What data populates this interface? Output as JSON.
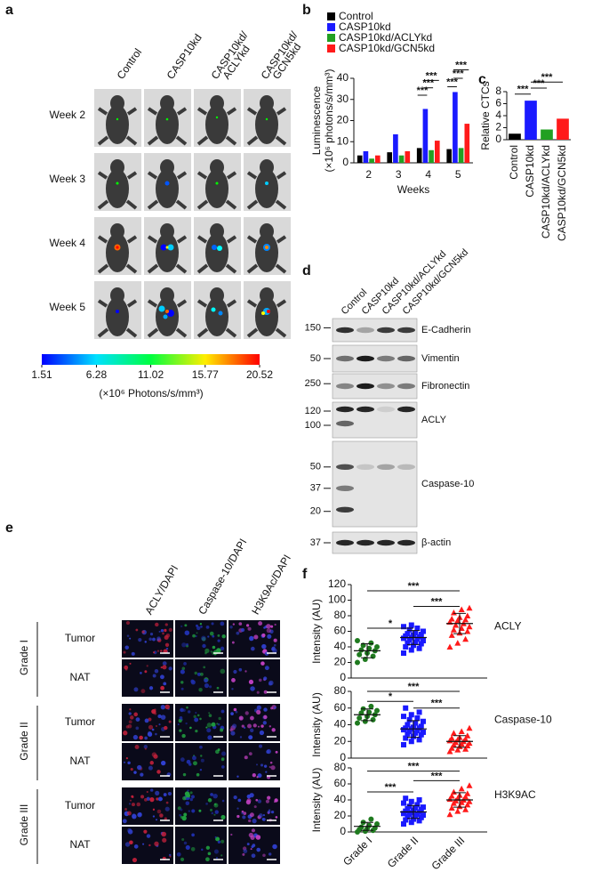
{
  "panel_labels": [
    "a",
    "b",
    "c",
    "d",
    "e",
    "f"
  ],
  "imaging": {
    "columns": [
      [
        "Control"
      ],
      [
        "CASP10kd"
      ],
      [
        "CASP10kd/",
        "ACLYkd"
      ],
      [
        "CASP10kd/",
        "GCN5kd"
      ]
    ],
    "rows": [
      "Week 2",
      "Week 3",
      "Week 4",
      "Week 5"
    ],
    "clim": [
      1.51,
      20.52
    ],
    "colorbar_ticks": [
      1.51,
      6.28,
      11.02,
      15.77,
      20.52
    ],
    "colorbar_label": "(×10⁶ Photons/s/mm³)"
  },
  "chart_data": [
    {
      "type": "bar",
      "categories": [
        "2",
        "3",
        "4",
        "5"
      ],
      "series": [
        {
          "name": "Control",
          "color": "#000000",
          "values": [
            3.5,
            5,
            7,
            6.5
          ]
        },
        {
          "name": "CASP10kd",
          "color": "#1a1aff",
          "values": [
            5.5,
            13.5,
            25.5,
            33.5
          ]
        },
        {
          "name": "CASP10kd/ACLYkd",
          "color": "#22a022",
          "values": [
            2,
            3.5,
            6,
            7
          ]
        },
        {
          "name": "CASP10kd/GCN5kd",
          "color": "#ff1a1a",
          "values": [
            3.5,
            5.5,
            10.5,
            18.5
          ]
        }
      ],
      "ylabel": [
        "Luminescence",
        "(×10⁶ photons/s/mm³)"
      ],
      "xlabel": "Weeks",
      "ylim": [
        0,
        40
      ],
      "yticks": [
        0,
        10,
        20,
        30,
        40
      ],
      "annotations": [
        "***",
        "***",
        "***",
        "***",
        "***",
        "***"
      ]
    },
    {
      "type": "bar",
      "categories": [
        "Control",
        "CASP10kd",
        "CASP10kd/ACLYkd",
        "CASP10kd/GCN5kd"
      ],
      "values": [
        1,
        6.5,
        1.7,
        3.5
      ],
      "colors": [
        "#000000",
        "#1a1aff",
        "#22a022",
        "#ff1a1a"
      ],
      "ylabel": [
        "Relative CTCs"
      ],
      "ylim": [
        0,
        8
      ],
      "yticks": [
        0,
        2,
        4,
        6,
        8
      ],
      "annotations": [
        "***",
        "***",
        "***"
      ]
    },
    {
      "type": "strip",
      "title": "ACLY",
      "ylabel": "Intensity (AU)",
      "ylim": [
        0,
        120
      ],
      "yticks": [
        0,
        20,
        40,
        60,
        80,
        100,
        120
      ],
      "series": [
        {
          "color": "#1f7a1f",
          "marker": "circle",
          "mean": 35,
          "sd": 9,
          "values": [
            20,
            24,
            28,
            30,
            32,
            35,
            36,
            38,
            40,
            42,
            45,
            48
          ]
        },
        {
          "color": "#1a1aff",
          "marker": "square",
          "mean": 52,
          "sd": 9,
          "values": [
            32,
            36,
            38,
            40,
            42,
            44,
            45,
            46,
            48,
            49,
            50,
            51,
            52,
            53,
            54,
            55,
            56,
            57,
            58,
            60,
            62,
            64,
            66,
            68
          ]
        },
        {
          "color": "#ff1a1a",
          "marker": "triangle",
          "mean": 70,
          "sd": 13,
          "values": [
            40,
            45,
            50,
            55,
            58,
            60,
            62,
            64,
            66,
            68,
            70,
            72,
            74,
            75,
            76,
            78,
            80,
            84,
            88,
            90
          ]
        }
      ],
      "annotations": [
        "*",
        "***",
        "***"
      ]
    },
    {
      "type": "strip",
      "title": "Caspase-10",
      "ylabel": "Intensity (AU)",
      "ylim": [
        0,
        80
      ],
      "yticks": [
        0,
        20,
        40,
        60,
        80
      ],
      "series": [
        {
          "color": "#1f7a1f",
          "marker": "circle",
          "mean": 52,
          "sd": 7,
          "values": [
            42,
            44,
            46,
            48,
            50,
            52,
            54,
            55,
            57,
            59,
            62
          ]
        },
        {
          "color": "#1a1aff",
          "marker": "square",
          "mean": 35,
          "sd": 10,
          "values": [
            16,
            20,
            22,
            24,
            26,
            28,
            29,
            30,
            31,
            32,
            33,
            34,
            35,
            36,
            36,
            37,
            38,
            40,
            42,
            44,
            46,
            48,
            50,
            52,
            55,
            60
          ]
        },
        {
          "color": "#ff1a1a",
          "marker": "triangle",
          "mean": 20,
          "sd": 7,
          "values": [
            8,
            10,
            11,
            12,
            14,
            15,
            16,
            17,
            18,
            19,
            20,
            21,
            22,
            23,
            24,
            25,
            27,
            30,
            32,
            36
          ]
        }
      ],
      "annotations": [
        "*",
        "***",
        "***"
      ]
    },
    {
      "type": "strip",
      "title": "H3K9AC",
      "ylabel": "Intensity (AU)",
      "ylim": [
        0,
        80
      ],
      "yticks": [
        0,
        20,
        40,
        60,
        80
      ],
      "categories": [
        "Grade I",
        "Grade II",
        "Grade III"
      ],
      "series": [
        {
          "color": "#1f7a1f",
          "marker": "circle",
          "mean": 7,
          "sd": 5,
          "values": [
            0,
            1,
            2,
            3,
            4,
            5,
            6,
            8,
            10,
            12,
            16
          ]
        },
        {
          "color": "#1a1aff",
          "marker": "square",
          "mean": 25,
          "sd": 8,
          "values": [
            10,
            12,
            14,
            15,
            16,
            18,
            19,
            20,
            21,
            22,
            22,
            23,
            24,
            25,
            26,
            27,
            28,
            29,
            30,
            31,
            32,
            34,
            36,
            38,
            40,
            42
          ]
        },
        {
          "color": "#ff1a1a",
          "marker": "triangle",
          "mean": 40,
          "sd": 9,
          "values": [
            22,
            26,
            28,
            30,
            32,
            34,
            36,
            37,
            38,
            39,
            40,
            41,
            42,
            44,
            45,
            46,
            48,
            50,
            54,
            58
          ]
        }
      ],
      "annotations": [
        "***",
        "***",
        "***"
      ]
    }
  ],
  "western": {
    "columns": [
      "Control",
      "CASP10kd",
      "CASP10kd/ACLYkd",
      "CASP10kd/GCN5kd"
    ],
    "blots": [
      {
        "name": "E-Cadherin",
        "markers": [
          150
        ]
      },
      {
        "name": "Vimentin",
        "markers": [
          50
        ]
      },
      {
        "name": "Fibronectin",
        "markers": [
          250
        ]
      },
      {
        "name": "ACLY",
        "markers": [
          120,
          100
        ]
      },
      {
        "name": "Caspase-10",
        "markers": [
          50,
          37,
          20
        ]
      },
      {
        "name": "β-actin",
        "markers": [
          37
        ]
      }
    ]
  },
  "ihc": {
    "columns": [
      "ACLY/DAPI",
      "Caspase-10/DAPI",
      "H3K9Ac/DAPI"
    ],
    "grades": [
      {
        "name": "Grade I",
        "rows": [
          "Tumor",
          "NAT"
        ]
      },
      {
        "name": "Grade II",
        "rows": [
          "Tumor",
          "NAT"
        ]
      },
      {
        "name": "Grade III",
        "rows": [
          "Tumor",
          "NAT"
        ]
      }
    ]
  }
}
